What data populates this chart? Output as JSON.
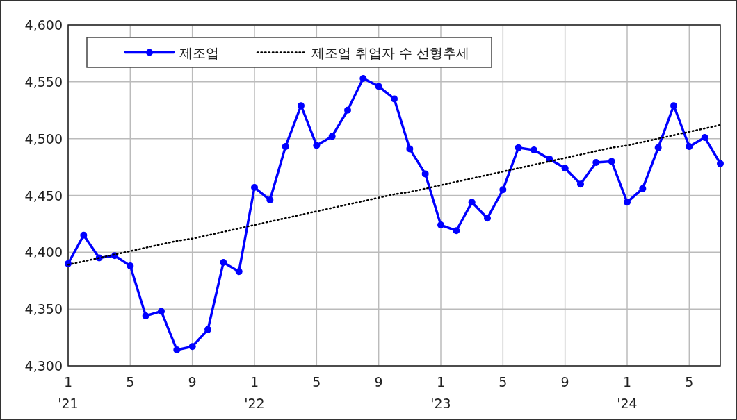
{
  "chart_data": {
    "type": "line",
    "categories": [
      "1\n'21",
      null,
      null,
      null,
      "5",
      null,
      null,
      null,
      "9",
      null,
      null,
      null,
      "1\n'22",
      null,
      null,
      null,
      "5",
      null,
      null,
      null,
      "9",
      null,
      null,
      null,
      "1\n'23",
      null,
      null,
      null,
      "5",
      null,
      null,
      null,
      "9",
      null,
      null,
      null,
      "1\n'24",
      null,
      null,
      null,
      "5",
      null,
      null
    ],
    "series": [
      {
        "name": "제조업",
        "color": "#0000ff",
        "marker": "circle",
        "line_style": "solid",
        "values": [
          4390,
          4415,
          4395,
          4397,
          4388,
          4344,
          4348,
          4314,
          4317,
          4332,
          4391,
          4383,
          4457,
          4446,
          4493,
          4529,
          4494,
          4502,
          4525,
          4553,
          4546,
          4535,
          4491,
          4469,
          4424,
          4419,
          4444,
          4430,
          4455,
          4492,
          4490,
          4482,
          4474,
          4460,
          4479,
          4480,
          4444,
          4456,
          4492,
          4529,
          4493,
          4501,
          4478
        ]
      },
      {
        "name": "제조업 취업자 수 선형추세",
        "color": "#000000",
        "marker": "none",
        "line_style": "dotted",
        "values": [
          4389,
          4392,
          4395,
          4398,
          4401,
          4404,
          4407,
          4410,
          4412,
          4415,
          4418,
          4421,
          4424,
          4427,
          4430,
          4433,
          4436,
          4439,
          4442,
          4445,
          4448,
          4451,
          4453,
          4456,
          4459,
          4462,
          4465,
          4468,
          4471,
          4474,
          4477,
          4480,
          4483,
          4486,
          4489,
          4492,
          4494,
          4497,
          4500,
          4503,
          4506,
          4509,
          4512
        ]
      }
    ],
    "ylim": [
      4300,
      4600
    ],
    "yticks": [
      {
        "value": 4300,
        "label": "4,300"
      },
      {
        "value": 4350,
        "label": "4,350"
      },
      {
        "value": 4400,
        "label": "4,400"
      },
      {
        "value": 4450,
        "label": "4,450"
      },
      {
        "value": 4500,
        "label": "4,500"
      },
      {
        "value": 4550,
        "label": "4,550"
      },
      {
        "value": 4600,
        "label": "4,600"
      }
    ],
    "grid": true,
    "legend": "top left"
  }
}
